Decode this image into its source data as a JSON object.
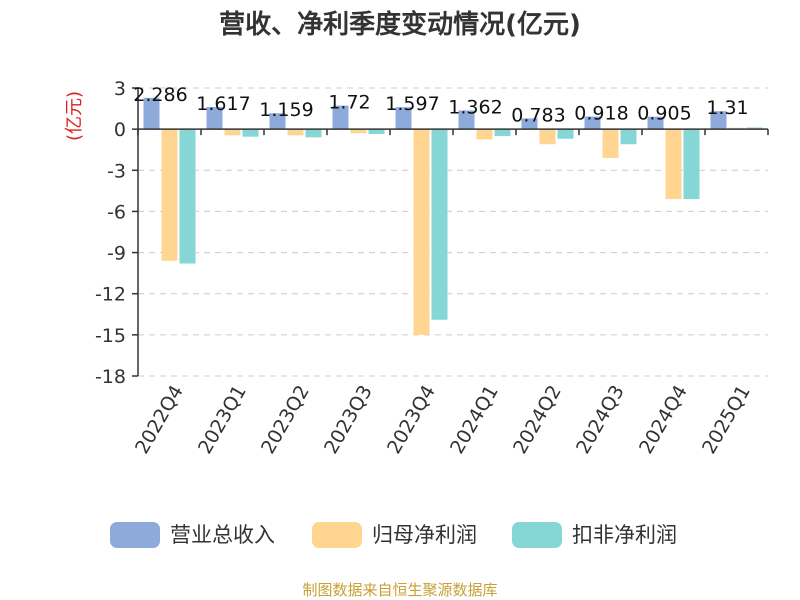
{
  "chart_data": {
    "type": "bar",
    "title": "营收、净利季度变动情况(亿元)",
    "ylabel": "(亿元)",
    "categories": [
      "2022Q4",
      "2023Q1",
      "2023Q2",
      "2023Q3",
      "2023Q4",
      "2024Q1",
      "2024Q2",
      "2024Q3",
      "2024Q4",
      "2025Q1"
    ],
    "series": [
      {
        "name": "营业总收入",
        "color": "#8eaadb",
        "values": [
          2.286,
          1.617,
          1.159,
          1.72,
          1.597,
          1.362,
          0.783,
          0.918,
          0.905,
          1.31
        ],
        "labels": [
          "2.286",
          "1.617",
          "1.159",
          "1.72",
          "1.597",
          "1.362",
          "0.783",
          "0.918",
          "0.905",
          "1.31"
        ]
      },
      {
        "name": "归母净利润",
        "color": "#ffd591",
        "values": [
          -9.6,
          -0.45,
          -0.45,
          -0.3,
          -15.0,
          -0.75,
          -1.1,
          -2.1,
          -5.1,
          0.1
        ]
      },
      {
        "name": "扣非净利润",
        "color": "#86d6d6",
        "values": [
          -9.8,
          -0.55,
          -0.6,
          -0.35,
          -13.9,
          -0.5,
          -0.7,
          -1.1,
          -5.1,
          0.12
        ]
      }
    ],
    "ylim": [
      -18,
      3
    ],
    "yticks": [
      3,
      0,
      -3,
      -6,
      -9,
      -12,
      -15,
      -18
    ],
    "grid": true,
    "legend_position": "bottom"
  },
  "footer": {
    "source": "制图数据来自恒生聚源数据库"
  },
  "colors": {
    "unit": "#dd2222",
    "source": "#c8a034"
  }
}
